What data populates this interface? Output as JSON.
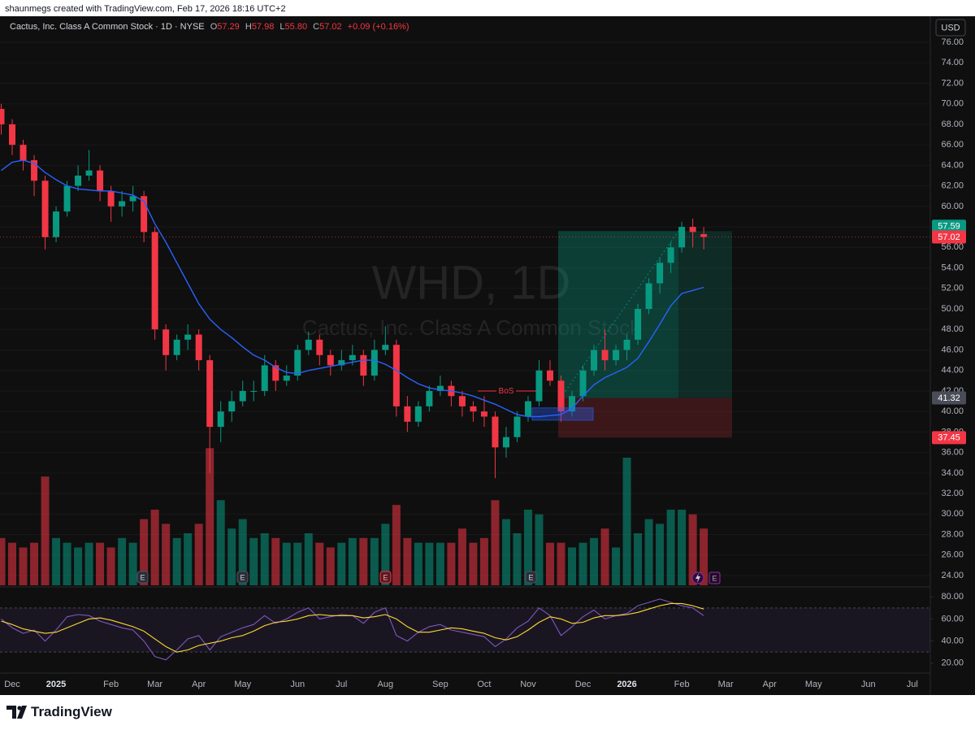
{
  "header": {
    "credit": "shaunmegs created with TradingView.com, Feb 17, 2026 18:16 UTC+2"
  },
  "footer": {
    "logo": "TradingView"
  },
  "chart_data": [
    {
      "type": "candlestick",
      "title": "Cactus, Inc. Class A Common Stock · 1D · NYSE",
      "legend_values": [
        [
          "O",
          "57.29"
        ],
        [
          "H",
          "57.98"
        ],
        [
          "L",
          "55.80"
        ],
        [
          "C",
          "57.02"
        ]
      ],
      "change": "+0.09 (+0.16%)",
      "watermark": "WHD, 1D",
      "watermark_subtitle": "Cactus, Inc. Class A Common Stock",
      "currency": "USD",
      "earnings_label": "E",
      "up_color": "#089981",
      "down_color": "#f23645",
      "categories": [
        null,
        "Dec",
        null,
        null,
        null,
        "2025",
        null,
        null,
        null,
        null,
        "Feb",
        null,
        null,
        null,
        "Mar",
        null,
        null,
        null,
        "Apr",
        null,
        null,
        null,
        "May",
        null,
        null,
        null,
        null,
        "Jun",
        null,
        null,
        null,
        "Jul",
        null,
        null,
        null,
        "Aug",
        null,
        null,
        null,
        null,
        "Sep",
        null,
        null,
        null,
        "Oct",
        null,
        null,
        null,
        "Nov",
        null,
        null,
        null,
        null,
        "Dec",
        null,
        null,
        null,
        "2026",
        null,
        null,
        null,
        null,
        "Feb",
        null,
        null,
        null,
        "Mar",
        null,
        null,
        null,
        "Apr",
        null,
        null,
        null,
        "May",
        null,
        null,
        null,
        null,
        "Jun",
        null,
        null,
        null,
        "Jul",
        null,
        null
      ],
      "open": [
        69.5,
        68,
        66,
        64.5,
        62.5,
        57,
        59.5,
        62,
        63,
        63.5,
        61.5,
        60,
        60.5,
        61,
        57.5,
        48,
        45.5,
        47,
        47.5,
        45,
        38.5,
        40,
        41,
        42,
        42,
        44.5,
        43,
        43.5,
        46,
        47,
        45.5,
        44.5,
        45,
        45.5,
        43.5,
        46,
        46.5,
        40.5,
        39,
        40.5,
        42,
        42.5,
        41.5,
        40.5,
        40,
        39.5,
        36.5,
        37.5,
        39.5,
        41,
        44,
        43,
        40,
        41.5,
        44,
        46,
        45,
        46,
        47,
        50,
        52.5,
        54.5,
        56,
        58,
        57.29,
        null,
        null,
        null,
        null,
        null,
        null,
        null,
        null,
        null,
        null,
        null,
        null,
        null,
        null,
        null,
        null,
        null,
        null,
        null,
        null,
        null
      ],
      "high": [
        70,
        68.5,
        66.5,
        65,
        63,
        60,
        62.5,
        64,
        65.5,
        64,
        62,
        61.5,
        62,
        61.5,
        58,
        48.5,
        47.5,
        48.5,
        48,
        45.5,
        41,
        42,
        43,
        43,
        45.5,
        45,
        44.5,
        46.5,
        47.8,
        47.5,
        46,
        46,
        46.5,
        46,
        47,
        48.3,
        47,
        41.5,
        41,
        42.5,
        43.5,
        43,
        42,
        41,
        41.5,
        40,
        38.5,
        40,
        41.5,
        45,
        45,
        43.5,
        42,
        44.5,
        46.5,
        48,
        46.5,
        47.5,
        50.5,
        53,
        55,
        56.5,
        58.5,
        58.8,
        57.98,
        null,
        null,
        null,
        null,
        null,
        null,
        null,
        null,
        null,
        null,
        null,
        null,
        null,
        null,
        null,
        null,
        null,
        null,
        null,
        null,
        null
      ],
      "low": [
        67,
        65,
        63.5,
        61,
        55.8,
        56.5,
        59,
        61.5,
        62.5,
        60.5,
        58.5,
        59,
        59.5,
        56.5,
        47,
        44,
        45,
        46,
        44,
        34,
        37,
        39,
        40.5,
        41,
        41.5,
        42,
        42.5,
        43,
        45.5,
        44.5,
        43.5,
        44,
        44.5,
        42.5,
        43,
        45.5,
        39.5,
        38,
        38.5,
        40,
        41.5,
        40.5,
        39.5,
        39,
        38.5,
        33.5,
        35.5,
        37,
        39,
        40.5,
        42.5,
        39,
        39.5,
        41,
        43.5,
        44,
        44.5,
        45,
        46.5,
        49.5,
        51.5,
        53.5,
        55.5,
        56,
        55.8,
        null,
        null,
        null,
        null,
        null,
        null,
        null,
        null,
        null,
        null,
        null,
        null,
        null,
        null,
        null,
        null,
        null,
        null,
        null,
        null,
        null
      ],
      "close": [
        68,
        66,
        64.5,
        62.5,
        57,
        59.5,
        62,
        63,
        63.5,
        61.5,
        60,
        60.5,
        61,
        57.5,
        48,
        45.5,
        47,
        47.5,
        45,
        38.5,
        40,
        41,
        42,
        42,
        44.5,
        43,
        43.5,
        46,
        47,
        45.5,
        44.5,
        45,
        45.5,
        43.5,
        46,
        46.5,
        40.5,
        39,
        40.5,
        42,
        42.5,
        41.5,
        40.5,
        40,
        39.5,
        36.5,
        37.5,
        39.5,
        41,
        44,
        43,
        40,
        41.5,
        44,
        46,
        45,
        46,
        47,
        50,
        52.5,
        54.5,
        56,
        58,
        57.5,
        57.02,
        null,
        null,
        null,
        null,
        null,
        null,
        null,
        null,
        null,
        null,
        null,
        null,
        null,
        null,
        null,
        null,
        null,
        null,
        null,
        null,
        null
      ],
      "series": [
        {
          "color": "#2962ff",
          "values": [
            63.5,
            64.3,
            64.5,
            64.2,
            63.3,
            62.6,
            62,
            61.7,
            61.6,
            61.5,
            61.5,
            61.3,
            61.1,
            60.5,
            58.3,
            56.5,
            54.5,
            52.5,
            50.5,
            49,
            48,
            47.2,
            46.3,
            45.5,
            45,
            44.3,
            43.8,
            43.7,
            44,
            44.2,
            44.4,
            44.6,
            44.8,
            45,
            45,
            44.6,
            44,
            43.3,
            42.7,
            42.3,
            42.1,
            42,
            41.8,
            41.5,
            41.1,
            40.7,
            40.2,
            39.7,
            39.5,
            39.5,
            39.6,
            39.7,
            40.3,
            41.5,
            42.6,
            43.3,
            43.8,
            44.3,
            45.2,
            46.8,
            48.5,
            50.3,
            51.5,
            51.8,
            52.1,
            null,
            null,
            null,
            null,
            null,
            null,
            null,
            null,
            null,
            null,
            null,
            null,
            null,
            null,
            null,
            null,
            null,
            null,
            null,
            null,
            null
          ]
        },
        {
          "axis": "y2",
          "values": [
            1.0,
            0.9,
            0.8,
            0.9,
            2.3,
            1.0,
            0.9,
            0.8,
            0.9,
            0.9,
            0.8,
            1.0,
            0.9,
            1.4,
            1.6,
            1.3,
            1.0,
            1.1,
            1.3,
            2.9,
            1.8,
            1.2,
            1.4,
            1.0,
            1.1,
            1.0,
            0.9,
            0.9,
            1.1,
            0.9,
            0.8,
            0.9,
            1.0,
            1.0,
            1.0,
            1.3,
            1.7,
            1.0,
            0.9,
            0.9,
            0.9,
            0.9,
            1.2,
            0.9,
            1.0,
            1.8,
            1.4,
            1.1,
            1.6,
            1.5,
            0.9,
            0.9,
            0.8,
            0.9,
            1.0,
            1.2,
            0.8,
            2.7,
            1.1,
            1.4,
            1.3,
            1.6,
            1.6,
            1.5,
            1.2,
            null,
            null,
            null,
            null,
            null,
            null,
            null,
            null,
            null,
            null,
            null,
            null,
            null,
            null,
            null,
            null,
            null,
            null,
            null,
            null,
            null
          ]
        }
      ],
      "ylim": [
        23.05,
        78.38
      ],
      "yticks": [
        {
          "value": 24,
          "label": "24.00"
        },
        {
          "value": 26,
          "label": "26.00"
        },
        {
          "value": 28,
          "label": "28.00"
        },
        {
          "value": 30,
          "label": "30.00"
        },
        {
          "value": 32,
          "label": "32.00"
        },
        {
          "value": 34,
          "label": "34.00"
        },
        {
          "value": 36,
          "label": "36.00"
        },
        {
          "value": 38,
          "label": "38.00"
        },
        {
          "value": 40,
          "label": "40.00"
        },
        {
          "value": 42,
          "label": "42.00"
        },
        {
          "value": 44,
          "label": "44.00"
        },
        {
          "value": 46,
          "label": "46.00"
        },
        {
          "value": 48,
          "label": "48.00"
        },
        {
          "value": 50,
          "label": "50.00"
        },
        {
          "value": 52,
          "label": "52.00"
        },
        {
          "value": 54,
          "label": "54.00"
        },
        {
          "value": 56,
          "label": "56.00"
        },
        {
          "value": 58,
          "label": "58.00"
        },
        {
          "value": 60,
          "label": "60.00"
        },
        {
          "value": 62,
          "label": "62.00"
        },
        {
          "value": 64,
          "label": "64.00"
        },
        {
          "value": 66,
          "label": "66.00"
        },
        {
          "value": 68,
          "label": "68.00"
        },
        {
          "value": 70,
          "label": "70.00"
        },
        {
          "value": 72,
          "label": "72.00"
        },
        {
          "value": 74,
          "label": "74.00"
        },
        {
          "value": 76,
          "label": "76.00"
        }
      ],
      "y2lim": [
        0,
        12
      ],
      "grid": true,
      "last_price": 57.02,
      "position": {
        "target": 57.59,
        "entry": 41.32,
        "stop": 37.45,
        "profit_color": "#089981",
        "loss_color": "#f23645"
      },
      "bos": {
        "text": "BoS",
        "value": 42,
        "color": "#f23645"
      },
      "order_block": {
        "values": [
          39.15,
          40.35
        ],
        "color": "#2962ff"
      }
    },
    {
      "type": "line",
      "ylim": [
        11,
        89
      ],
      "yticks": [
        {
          "value": 20,
          "label": "20.00"
        },
        {
          "value": 40,
          "label": "40.00"
        },
        {
          "value": 60,
          "label": "60.00"
        },
        {
          "value": 80,
          "label": "80.00"
        }
      ],
      "bands": [
        30,
        70
      ],
      "band_color": "#7e57c2",
      "series": [
        {
          "color": "#7e57c2",
          "values": [
            60,
            52,
            47,
            50,
            40,
            50,
            62,
            64,
            63,
            58,
            55,
            52,
            50,
            40,
            26,
            23,
            32,
            42,
            45,
            32,
            44,
            48,
            52,
            55,
            63,
            56,
            60,
            66,
            70,
            60,
            62,
            64,
            63,
            56,
            66,
            70,
            45,
            40,
            48,
            53,
            55,
            50,
            48,
            46,
            44,
            35,
            42,
            52,
            58,
            70,
            63,
            45,
            53,
            62,
            68,
            60,
            63,
            65,
            72,
            75,
            78,
            75,
            72,
            70,
            63,
            null,
            null,
            null,
            null,
            null,
            null,
            null,
            null,
            null,
            null,
            null,
            null,
            null,
            null,
            null,
            null,
            null,
            null,
            null,
            null,
            null
          ]
        },
        {
          "color": "#fdd835",
          "values": [
            58,
            55,
            51,
            49,
            47,
            48,
            52,
            56,
            60,
            61,
            59,
            56,
            53,
            49,
            42,
            35,
            30,
            32,
            36,
            38,
            40,
            43,
            45,
            49,
            54,
            57,
            58,
            60,
            63,
            64,
            63,
            63,
            63,
            61,
            62,
            64,
            60,
            53,
            48,
            48,
            50,
            52,
            51,
            49,
            47,
            43,
            41,
            44,
            50,
            57,
            62,
            60,
            56,
            57,
            61,
            63,
            63,
            64,
            66,
            69,
            72,
            74,
            74,
            72,
            69,
            null,
            null,
            null,
            null,
            null,
            null,
            null,
            null,
            null,
            null,
            null,
            null,
            null,
            null,
            null,
            null,
            null,
            null,
            null,
            null,
            null
          ]
        }
      ]
    }
  ]
}
